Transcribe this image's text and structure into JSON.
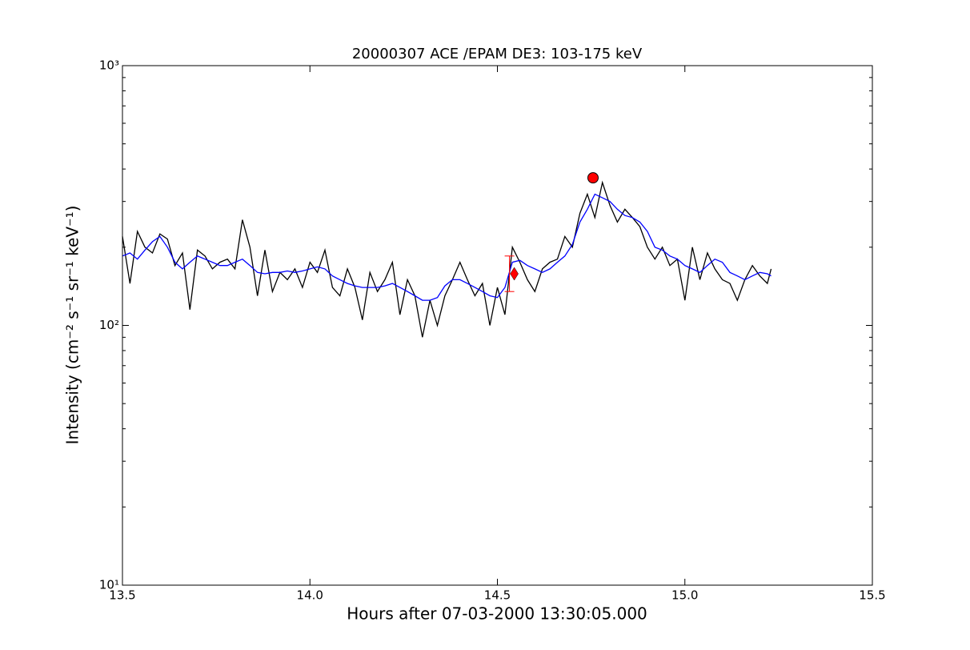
{
  "chart_data": {
    "type": "line",
    "title": "20000307 ACE /EPAM DE3: 103-175 keV",
    "x_label": "Hours after 07-03-2000 13:30:05.000",
    "y_label": "Intensity (cm⁻² s⁻¹ sr⁻¹ keV⁻¹)",
    "log_y": true,
    "minor_ticks": true,
    "xlim": [
      13.5,
      15.5
    ],
    "xticks": [
      13.5,
      {
        "value": 14,
        "label": "14.0"
      },
      14.5,
      {
        "value": 15,
        "label": "15.0"
      },
      15.5
    ],
    "ylim": [
      10,
      1000
    ],
    "yticks": [
      {
        "value": 10,
        "label": "10¹"
      },
      {
        "value": 100,
        "label": "10²"
      },
      {
        "value": 1000,
        "label": "10³"
      }
    ],
    "x": [
      13.5,
      13.52,
      13.54,
      13.56,
      13.58,
      13.6,
      13.62,
      13.64,
      13.66,
      13.68,
      13.7,
      13.72,
      13.74,
      13.76,
      13.78,
      13.8,
      13.82,
      13.84,
      13.86,
      13.88,
      13.9,
      13.92,
      13.94,
      13.96,
      13.98,
      14.0,
      14.02,
      14.04,
      14.06,
      14.08,
      14.1,
      14.12,
      14.14,
      14.16,
      14.18,
      14.2,
      14.22,
      14.24,
      14.26,
      14.28,
      14.3,
      14.32,
      14.34,
      14.36,
      14.38,
      14.4,
      14.42,
      14.44,
      14.46,
      14.48,
      14.5,
      14.52,
      14.54,
      14.56,
      14.58,
      14.6,
      14.62,
      14.64,
      14.66,
      14.68,
      14.7,
      14.72,
      14.74,
      14.76,
      14.78,
      14.8,
      14.82,
      14.84,
      14.86,
      14.88,
      14.9,
      14.92,
      14.94,
      14.96,
      14.98,
      15.0,
      15.02,
      15.04,
      15.06,
      15.08,
      15.1,
      15.12,
      15.14,
      15.16,
      15.18,
      15.2,
      15.22,
      15.23
    ],
    "series": [
      {
        "color": "#000000",
        "values": [
          220,
          145,
          230,
          200,
          190,
          225,
          215,
          170,
          190,
          115,
          195,
          185,
          165,
          175,
          180,
          165,
          255,
          200,
          130,
          195,
          135,
          160,
          150,
          165,
          140,
          175,
          160,
          195,
          140,
          130,
          165,
          140,
          105,
          160,
          135,
          150,
          175,
          110,
          150,
          130,
          90,
          125,
          100,
          130,
          150,
          175,
          150,
          130,
          145,
          100,
          140,
          110,
          200,
          175,
          150,
          135,
          165,
          175,
          180,
          220,
          200,
          270,
          320,
          260,
          355,
          290,
          250,
          280,
          260,
          240,
          200,
          180,
          200,
          170,
          180,
          125,
          200,
          150,
          190,
          165,
          150,
          145,
          125,
          150,
          170,
          155,
          145,
          165
        ]
      },
      {
        "color": "#0000ff",
        "values": [
          185,
          190,
          180,
          195,
          210,
          220,
          200,
          175,
          165,
          175,
          185,
          180,
          175,
          170,
          170,
          175,
          180,
          170,
          160,
          158,
          160,
          160,
          162,
          160,
          162,
          165,
          168,
          165,
          155,
          150,
          145,
          142,
          140,
          140,
          140,
          142,
          145,
          140,
          135,
          130,
          125,
          125,
          128,
          142,
          150,
          150,
          145,
          140,
          135,
          130,
          128,
          140,
          175,
          178,
          170,
          165,
          160,
          165,
          175,
          185,
          205,
          250,
          280,
          320,
          310,
          300,
          280,
          265,
          260,
          250,
          230,
          200,
          195,
          185,
          180,
          170,
          165,
          160,
          170,
          180,
          175,
          160,
          155,
          150,
          155,
          160,
          158,
          155
        ]
      }
    ],
    "points": [
      {
        "marker": "circle",
        "color": "#ff0000",
        "x": 14.755,
        "y": 370
      },
      {
        "marker": "diamond",
        "color": "#ff0000",
        "x": 14.545,
        "y": 158,
        "ylow": 135,
        "yhigh": 185
      }
    ]
  }
}
